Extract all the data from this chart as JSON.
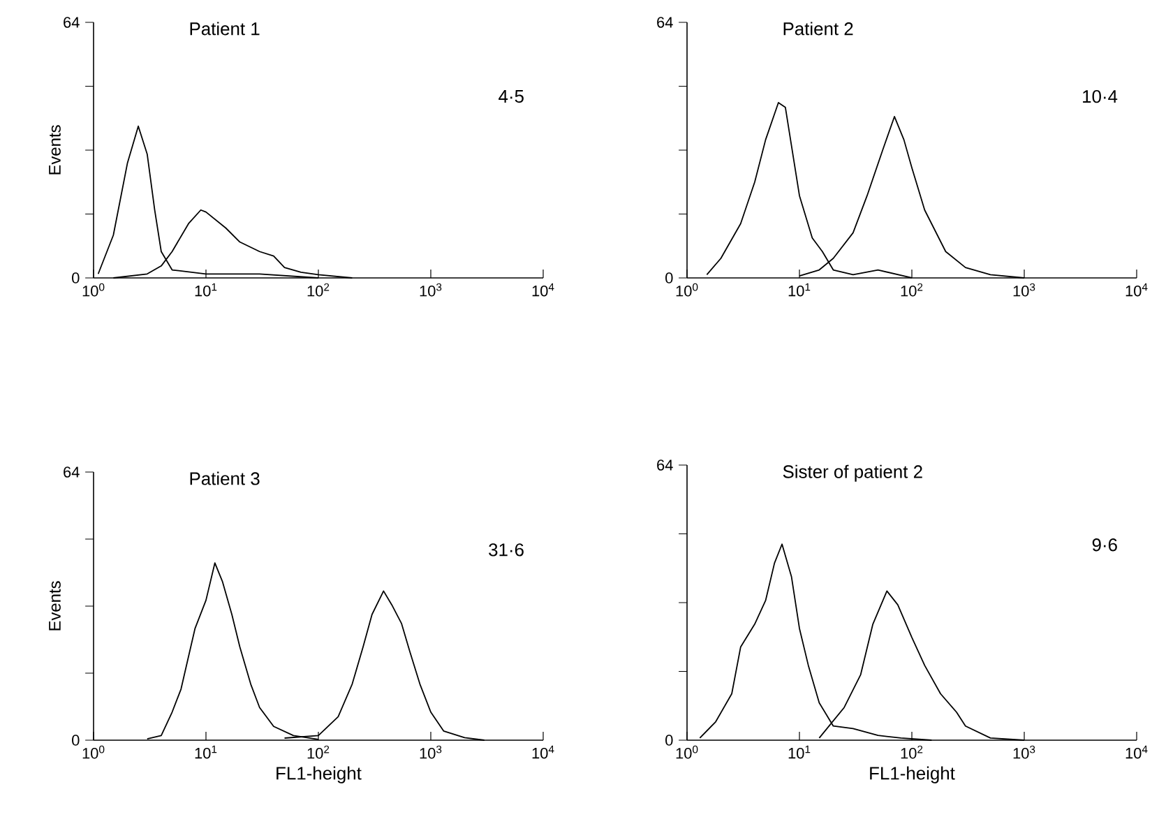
{
  "chart_data": [
    {
      "type": "line",
      "title": "Patient 1",
      "ylabel": "Events",
      "annotations": [
        "4·5"
      ],
      "log": "x",
      "xlim": [
        1,
        10000
      ],
      "ylim": [
        0,
        64
      ],
      "xticks": [
        {
          "value": 1,
          "label": "10$^{0}$"
        },
        {
          "value": 10,
          "label": "10$^{1}$"
        },
        {
          "value": 100,
          "label": "10$^{2}$"
        },
        {
          "value": 1000,
          "label": "10$^{3}$"
        },
        {
          "value": 10000,
          "label": "10$^{4}$"
        }
      ],
      "yticks": [
        0,
        {
          "value": 16,
          "label": null
        },
        {
          "value": 32,
          "label": null
        },
        {
          "value": 48,
          "label": null
        },
        64
      ],
      "series": [
        {
          "color": "#000000",
          "x": [
            1.1,
            1.5,
            2,
            2.5,
            3,
            3.5,
            4,
            5,
            10,
            30,
            100
          ],
          "values": [
            1,
            10.7,
            28.7,
            38,
            31,
            17,
            6.6,
            2,
            1,
            1,
            0
          ]
        },
        {
          "color": "#000000",
          "x": [
            1.5,
            3,
            4,
            5,
            7,
            9,
            10,
            15,
            20,
            30,
            40,
            50,
            70,
            100,
            200
          ],
          "values": [
            0,
            1,
            3,
            6.6,
            13.6,
            17,
            16.5,
            12.5,
            9,
            6.6,
            5.5,
            2.6,
            1.4,
            0.8,
            0
          ]
        }
      ]
    },
    {
      "type": "line",
      "title": "Patient 2",
      "annotations": [
        "10·4"
      ],
      "log": "x",
      "xlim": [
        1,
        10000
      ],
      "ylim": [
        0,
        64
      ],
      "xticks": [
        {
          "value": 1,
          "label": "10$^{0}$"
        },
        {
          "value": 10,
          "label": "10$^{1}$"
        },
        {
          "value": 100,
          "label": "10$^{2}$"
        },
        {
          "value": 1000,
          "label": "10$^{3}$"
        },
        {
          "value": 10000,
          "label": "10$^{4}$"
        }
      ],
      "yticks": [
        0,
        {
          "value": 16,
          "label": null
        },
        {
          "value": 32,
          "label": null
        },
        {
          "value": 48,
          "label": null
        },
        64
      ],
      "series": [
        {
          "color": "#000000",
          "x": [
            1.5,
            2,
            3,
            4,
            5,
            6.5,
            7.5,
            9,
            10,
            13,
            16,
            20,
            30,
            50,
            100
          ],
          "values": [
            0.8,
            4.9,
            13.6,
            24,
            34.6,
            43.9,
            42.7,
            28.7,
            20.6,
            10,
            6.6,
            2,
            0.8,
            2,
            0
          ]
        },
        {
          "color": "#000000",
          "x": [
            10,
            15,
            20,
            30,
            40,
            55,
            70,
            85,
            100,
            130,
            200,
            300,
            500,
            1000
          ],
          "values": [
            0.5,
            2,
            4.9,
            11.3,
            20.6,
            32,
            40.4,
            34.6,
            27.6,
            17,
            6.6,
            2.6,
            0.8,
            0
          ]
        }
      ]
    },
    {
      "type": "line",
      "title": "Patient 3",
      "ylabel": "Events",
      "xlabel": "FL1-height",
      "annotations": [
        "31·6"
      ],
      "log": "x",
      "xlim": [
        1,
        10000
      ],
      "ylim": [
        0,
        64
      ],
      "xticks": [
        {
          "value": 1,
          "label": "10$^{0}$"
        },
        {
          "value": 10,
          "label": "10$^{1}$"
        },
        {
          "value": 100,
          "label": "10$^{2}$"
        },
        {
          "value": 1000,
          "label": "10$^{3}$"
        },
        {
          "value": 10000,
          "label": "10$^{4}$"
        }
      ],
      "yticks": [
        0,
        {
          "value": 16,
          "label": null
        },
        {
          "value": 32,
          "label": null
        },
        {
          "value": 48,
          "label": null
        },
        64
      ],
      "series": [
        {
          "color": "#000000",
          "x": [
            3,
            4,
            5,
            6,
            7,
            8,
            10,
            12,
            14,
            17,
            20,
            25,
            30,
            40,
            60,
            100
          ],
          "values": [
            0.3,
            1.1,
            6.7,
            12.2,
            20,
            26.7,
            33.4,
            42.3,
            37.9,
            30,
            22.3,
            13.4,
            7.8,
            3.3,
            1.1,
            0.2
          ]
        },
        {
          "color": "#000000",
          "x": [
            50,
            100,
            150,
            200,
            250,
            300,
            380,
            450,
            550,
            650,
            800,
            1000,
            1300,
            2000,
            3000
          ],
          "values": [
            0.5,
            1.1,
            5.6,
            13.4,
            22.3,
            30,
            35.6,
            32.3,
            27.8,
            21.2,
            13.4,
            6.7,
            2.2,
            0.6,
            0
          ]
        }
      ]
    },
    {
      "type": "line",
      "title": "Sister of patient 2",
      "xlabel": "FL1-height",
      "annotations": [
        "9·6"
      ],
      "log": "x",
      "xlim": [
        1,
        10000
      ],
      "ylim": [
        0,
        64
      ],
      "xticks": [
        {
          "value": 1,
          "label": "10$^{0}$"
        },
        {
          "value": 10,
          "label": "10$^{1}$"
        },
        {
          "value": 100,
          "label": "10$^{2}$"
        },
        {
          "value": 1000,
          "label": "10$^{3}$"
        },
        {
          "value": 10000,
          "label": "10$^{4}$"
        }
      ],
      "yticks": [
        0,
        {
          "value": 16,
          "label": null
        },
        {
          "value": 32,
          "label": null
        },
        {
          "value": 48,
          "label": null
        },
        64
      ],
      "series": [
        {
          "color": "#000000",
          "x": [
            1.3,
            1.8,
            2.5,
            3,
            4,
            5,
            6,
            7,
            8.5,
            10,
            12,
            15,
            20,
            30,
            50,
            80,
            150
          ],
          "values": [
            0.5,
            4.3,
            10.8,
            21.7,
            27,
            32.5,
            41.2,
            45.6,
            38,
            26,
            17.4,
            8.7,
            3.3,
            2.7,
            1.1,
            0.5,
            0
          ]
        },
        {
          "color": "#000000",
          "x": [
            15,
            25,
            35,
            45,
            60,
            75,
            100,
            130,
            180,
            250,
            300,
            500,
            1000
          ],
          "values": [
            0.5,
            7.6,
            15.2,
            27,
            34.7,
            31.5,
            23.9,
            17.4,
            10.8,
            6.5,
            3.3,
            0.5,
            0
          ]
        }
      ]
    }
  ]
}
